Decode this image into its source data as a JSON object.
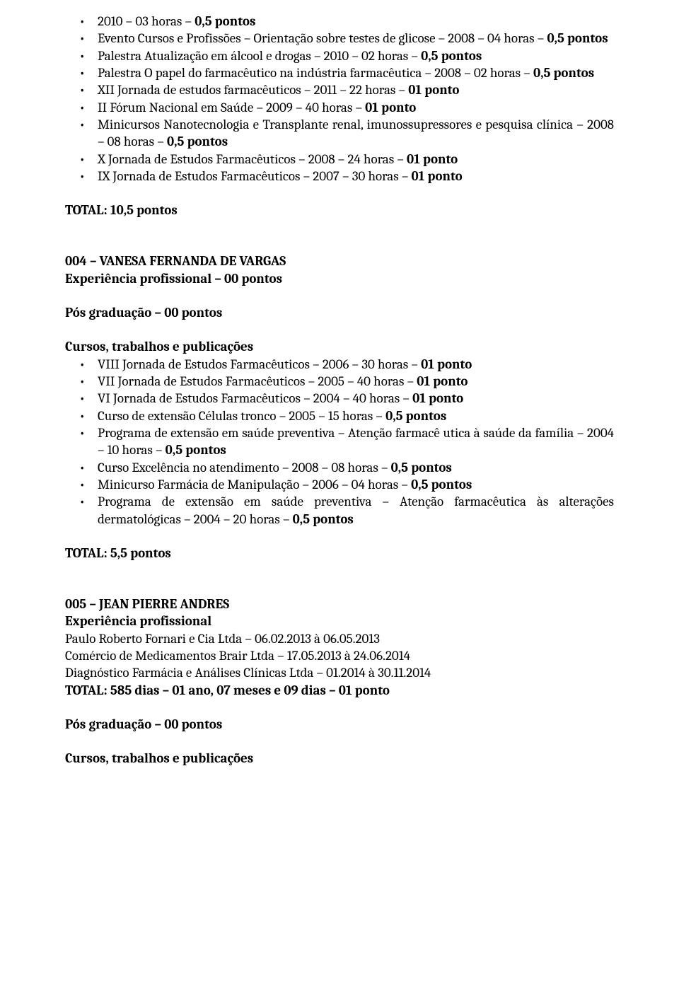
{
  "top_bullets": [
    {
      "segments": [
        {
          "t": "2010 – 03 horas – "
        },
        {
          "t": "0,5 pontos",
          "bold": true
        }
      ]
    },
    {
      "segments": [
        {
          "t": "Evento Cursos e Profissões – Orientação sobre testes de glicose – 2008 – 04 horas – "
        },
        {
          "t": "0,5 pontos",
          "bold": true
        }
      ]
    },
    {
      "segments": [
        {
          "t": "Palestra Atualização em álcool e drogas – 2010 – 02 horas – "
        },
        {
          "t": "0,5 pontos",
          "bold": true
        }
      ]
    },
    {
      "segments": [
        {
          "t": "Palestra O papel do farmacêutico na indústria farmacêutica – 2008 – 02 horas – "
        },
        {
          "t": "0,5 pontos",
          "bold": true
        }
      ]
    },
    {
      "segments": [
        {
          "t": "XII Jornada de estudos farmacêuticos – 2011 – 22 horas – "
        },
        {
          "t": "01 ponto",
          "bold": true
        }
      ]
    },
    {
      "segments": [
        {
          "t": "II Fórum Nacional em Saúde – 2009 – 40 horas – "
        },
        {
          "t": "01 ponto",
          "bold": true
        }
      ]
    },
    {
      "segments": [
        {
          "t": "Minicursos Nanotecnologia e Transplante renal, imunossupressores e pesquisa clínica – 2008 – 08 horas – "
        },
        {
          "t": "0,5 pontos",
          "bold": true
        }
      ]
    },
    {
      "segments": [
        {
          "t": "X Jornada de Estudos Farmacêuticos – 2008 – 24 horas – "
        },
        {
          "t": "01 ponto",
          "bold": true
        }
      ]
    },
    {
      "segments": [
        {
          "t": "IX Jornada de Estudos Farmacêuticos – 2007 – 30 horas – "
        },
        {
          "t": "01 ponto",
          "bold": true
        }
      ]
    }
  ],
  "top_total": "TOTAL: 10,5 pontos",
  "sec004": {
    "title": "004 – VANESA FERNANDA DE VARGAS",
    "exp": "Experiência profissional – 00 pontos",
    "posgrad": "Pós graduação – 00 pontos",
    "cursos_header": "Cursos, trabalhos e publicações",
    "bullets": [
      {
        "segments": [
          {
            "t": "VIII Jornada de Estudos Farmacêuticos – 2006 – 30 horas – "
          },
          {
            "t": "01 ponto",
            "bold": true
          }
        ]
      },
      {
        "segments": [
          {
            "t": "VII  Jornada de Estudos Farmacêuticos – 2005 – 40 horas – "
          },
          {
            "t": "01 ponto",
            "bold": true
          }
        ]
      },
      {
        "segments": [
          {
            "t": "VI Jornada de Estudos Farmacêuticos – 2004 – 40 horas – "
          },
          {
            "t": "01 ponto",
            "bold": true
          }
        ]
      },
      {
        "segments": [
          {
            "t": "Curso de extensão Células tronco – 2005 – 15 horas – "
          },
          {
            "t": "0,5 pontos",
            "bold": true
          }
        ]
      },
      {
        "segments": [
          {
            "t": "Programa de extensão em saúde preventiva – Atenção farmacê utica à saúde da família – 2004 – 10 horas  – "
          },
          {
            "t": "0,5 pontos",
            "bold": true
          }
        ]
      },
      {
        "segments": [
          {
            "t": "Curso Excelência no atendimento – 2008 – 08 horas  – "
          },
          {
            "t": "0,5 pontos",
            "bold": true
          }
        ]
      },
      {
        "segments": [
          {
            "t": "Minicurso Farmácia de Manipulação – 2006 – 04 horas  – "
          },
          {
            "t": "0,5 pontos",
            "bold": true
          }
        ]
      },
      {
        "segments": [
          {
            "t": "Programa de extensão em saúde preventiva – Atenção farmacêutica às alterações dermatológicas – 2004 – 20 horas  – "
          },
          {
            "t": "0,5 pontos",
            "bold": true
          }
        ]
      }
    ],
    "total": "TOTAL: 5,5 pontos"
  },
  "sec005": {
    "title": "005 – JEAN PIERRE ANDRES",
    "exp_header": "Experiência profissional",
    "exp_lines": [
      "Paulo Roberto Fornari e Cia Ltda – 06.02.2013 à 06.05.2013",
      "Comércio de Medicamentos Brair Ltda – 17.05.2013 à 24.06.2014",
      "Diagnóstico Farmácia e Análises Clínicas Ltda – 01.2014 à 30.11.2014"
    ],
    "exp_total": "TOTAL: 585 dias – 01 ano, 07 meses e 09 dias – 01 ponto",
    "posgrad": "Pós graduação – 00 pontos",
    "cursos_header": "Cursos, trabalhos e publicações"
  }
}
